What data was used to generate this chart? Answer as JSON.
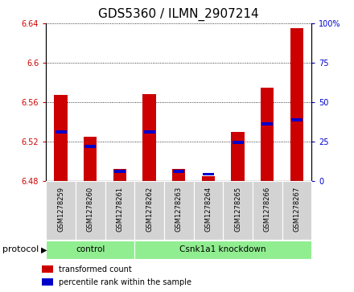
{
  "title": "GDS5360 / ILMN_2907214",
  "samples": [
    "GSM1278259",
    "GSM1278260",
    "GSM1278261",
    "GSM1278262",
    "GSM1278263",
    "GSM1278264",
    "GSM1278265",
    "GSM1278266",
    "GSM1278267"
  ],
  "bar_bottoms": [
    6.48,
    6.48,
    6.48,
    6.48,
    6.48,
    6.48,
    6.48,
    6.48,
    6.48
  ],
  "bar_tops": [
    6.567,
    6.525,
    6.492,
    6.568,
    6.492,
    6.485,
    6.53,
    6.575,
    6.635
  ],
  "percentile_values": [
    6.53,
    6.515,
    6.49,
    6.53,
    6.49,
    6.487,
    6.519,
    6.538,
    6.542
  ],
  "ylim_left": [
    6.48,
    6.64
  ],
  "ylim_right": [
    0,
    100
  ],
  "yticks_left": [
    6.48,
    6.52,
    6.56,
    6.6,
    6.64
  ],
  "yticks_right": [
    0,
    25,
    50,
    75,
    100
  ],
  "bar_color": "#cc0000",
  "percentile_color": "#0000cc",
  "title_fontsize": 11,
  "protocol_groups": [
    {
      "label": "control",
      "start": 0,
      "end": 2
    },
    {
      "label": "Csnk1a1 knockdown",
      "start": 3,
      "end": 8
    }
  ],
  "protocol_label": "protocol",
  "group_bg_color": "#90EE90",
  "sample_bg_color": "#d3d3d3",
  "legend_items": [
    {
      "label": "transformed count",
      "color": "#cc0000"
    },
    {
      "label": "percentile rank within the sample",
      "color": "#0000cc"
    }
  ]
}
